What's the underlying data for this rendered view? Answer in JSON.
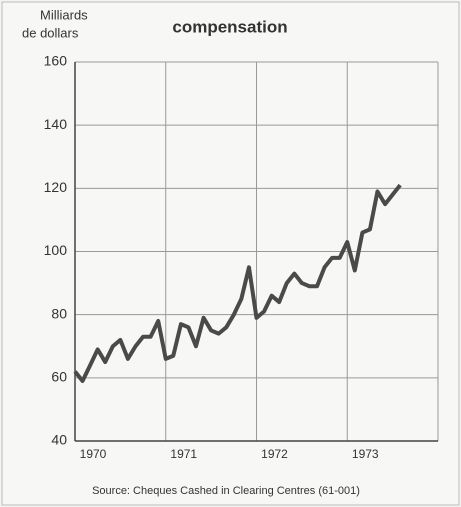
{
  "chart_data": {
    "type": "line",
    "title": "compensation",
    "ylabel": [
      "Milliards",
      "de dollars"
    ],
    "source": "Source: Cheques Cashed in Clearing Centres (61-001)",
    "x": [
      1970,
      1970.083,
      1970.167,
      1970.25,
      1970.333,
      1970.417,
      1970.5,
      1970.583,
      1970.667,
      1970.75,
      1970.833,
      1970.917,
      1971,
      1971.083,
      1971.167,
      1971.25,
      1971.333,
      1971.417,
      1971.5,
      1971.583,
      1971.667,
      1971.75,
      1971.833,
      1971.917,
      1972,
      1972.083,
      1972.167,
      1972.25,
      1972.333,
      1972.417,
      1972.5,
      1972.583,
      1972.667,
      1972.75,
      1972.833,
      1972.917,
      1973,
      1973.083,
      1973.167,
      1973.25,
      1973.333,
      1973.417,
      1973.5,
      1973.583
    ],
    "series": [
      {
        "name": "compensation",
        "color": "#4a4a4a",
        "values": [
          62,
          59,
          64,
          69,
          65,
          70,
          72,
          66,
          70,
          73,
          73,
          78,
          66,
          67,
          77,
          76,
          70,
          79,
          75,
          74,
          76,
          80,
          85,
          95,
          79,
          81,
          86,
          84,
          90,
          93,
          90,
          89,
          89,
          95,
          98,
          98,
          103,
          94,
          106,
          107,
          119,
          115,
          118,
          121
        ]
      }
    ],
    "xlim": [
      1970,
      1974
    ],
    "xticks": [
      1970,
      1971,
      1972,
      1973
    ],
    "ylim": [
      40,
      160
    ],
    "yticks": [
      40,
      60,
      80,
      100,
      120,
      140,
      160
    ],
    "grid": true
  }
}
